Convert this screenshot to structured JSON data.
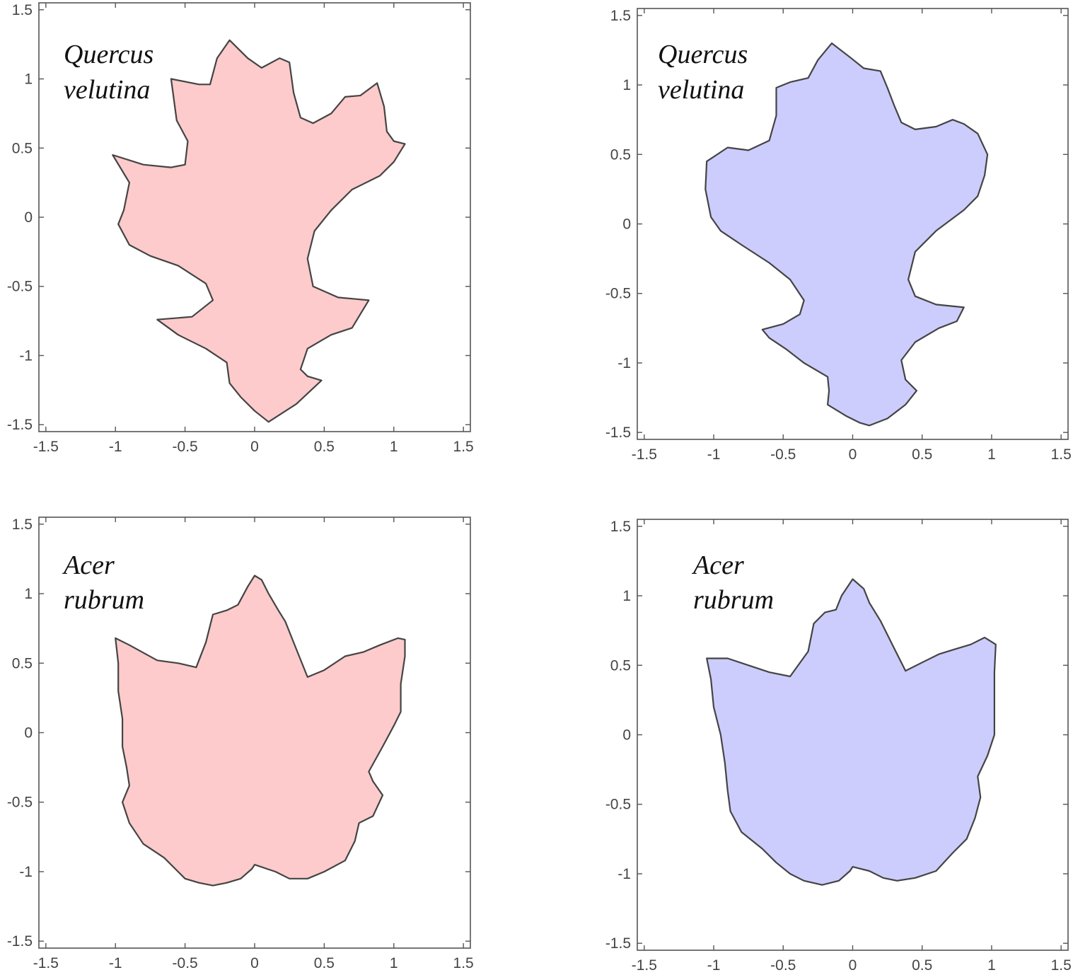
{
  "figure": {
    "background": "#ffffff",
    "axis_color": "#555555",
    "outline_color": "#444444"
  },
  "chart_data": [
    {
      "type": "area",
      "name": "panel-top-left",
      "label_lines": [
        "Quercus",
        "velutina"
      ],
      "fill": "#fdcbcb",
      "xlim": [
        -1.55,
        1.55
      ],
      "ylim": [
        -1.55,
        1.55
      ],
      "xticks": [
        -1.5,
        -1,
        -0.5,
        0,
        0.5,
        1,
        1.5
      ],
      "yticks": [
        -1.5,
        -1,
        -0.5,
        0,
        0.5,
        1,
        1.5
      ],
      "xtick_labels": [
        "-1.5",
        "-1",
        "-0.5",
        "0",
        "0.5",
        "1",
        "1.5"
      ],
      "ytick_labels": [
        "-1.5",
        "-1",
        "-0.5",
        "0",
        "0.5",
        "1",
        "1.5"
      ],
      "grid": false,
      "outline": [
        [
          0.1,
          -1.48
        ],
        [
          0.3,
          -1.35
        ],
        [
          0.48,
          -1.18
        ],
        [
          0.38,
          -1.15
        ],
        [
          0.33,
          -1.1
        ],
        [
          0.38,
          -0.95
        ],
        [
          0.55,
          -0.85
        ],
        [
          0.7,
          -0.8
        ],
        [
          0.82,
          -0.6
        ],
        [
          0.6,
          -0.58
        ],
        [
          0.42,
          -0.5
        ],
        [
          0.38,
          -0.3
        ],
        [
          0.43,
          -0.1
        ],
        [
          0.55,
          0.05
        ],
        [
          0.7,
          0.2
        ],
        [
          0.9,
          0.3
        ],
        [
          1,
          0.4
        ],
        [
          1.08,
          0.53
        ],
        [
          1.0,
          0.55
        ],
        [
          0.95,
          0.62
        ],
        [
          0.93,
          0.8
        ],
        [
          0.88,
          0.97
        ],
        [
          0.76,
          0.88
        ],
        [
          0.65,
          0.87
        ],
        [
          0.55,
          0.75
        ],
        [
          0.42,
          0.68
        ],
        [
          0.33,
          0.72
        ],
        [
          0.28,
          0.9
        ],
        [
          0.25,
          1.12
        ],
        [
          0.18,
          1.15
        ],
        [
          0.05,
          1.08
        ],
        [
          -0.05,
          1.15
        ],
        [
          -0.18,
          1.28
        ],
        [
          -0.27,
          1.15
        ],
        [
          -0.32,
          0.96
        ],
        [
          -0.4,
          0.96
        ],
        [
          -0.6,
          1.0
        ],
        [
          -0.56,
          0.7
        ],
        [
          -0.48,
          0.55
        ],
        [
          -0.5,
          0.38
        ],
        [
          -0.6,
          0.36
        ],
        [
          -0.8,
          0.38
        ],
        [
          -1.02,
          0.45
        ],
        [
          -0.9,
          0.25
        ],
        [
          -0.94,
          0.05
        ],
        [
          -0.98,
          -0.05
        ],
        [
          -0.9,
          -0.2
        ],
        [
          -0.75,
          -0.28
        ],
        [
          -0.55,
          -0.35
        ],
        [
          -0.35,
          -0.48
        ],
        [
          -0.3,
          -0.6
        ],
        [
          -0.45,
          -0.72
        ],
        [
          -0.7,
          -0.74
        ],
        [
          -0.55,
          -0.85
        ],
        [
          -0.35,
          -0.95
        ],
        [
          -0.2,
          -1.05
        ],
        [
          -0.18,
          -1.2
        ],
        [
          -0.1,
          -1.3
        ],
        [
          0.0,
          -1.4
        ]
      ]
    },
    {
      "type": "area",
      "name": "panel-top-right",
      "label_lines": [
        "Quercus",
        "velutina"
      ],
      "fill": "#cccdfc",
      "xlim": [
        -1.55,
        1.55
      ],
      "ylim": [
        -1.55,
        1.55
      ],
      "xticks": [
        -1.5,
        -1,
        -0.5,
        0,
        0.5,
        1,
        1.5
      ],
      "yticks": [
        -1.5,
        -1,
        -0.5,
        0,
        0.5,
        1,
        1.5
      ],
      "xtick_labels": [
        "-1.5",
        "-1",
        "-0.5",
        "0",
        "0.5",
        "1",
        "1.5"
      ],
      "ytick_labels": [
        "-1.5",
        "-1",
        "-0.5",
        "0",
        "0.5",
        "1",
        "1.5"
      ],
      "grid": false,
      "outline": [
        [
          0.12,
          -1.45
        ],
        [
          0.25,
          -1.4
        ],
        [
          0.38,
          -1.3
        ],
        [
          0.46,
          -1.2
        ],
        [
          0.38,
          -1.12
        ],
        [
          0.35,
          -0.98
        ],
        [
          0.45,
          -0.85
        ],
        [
          0.62,
          -0.75
        ],
        [
          0.75,
          -0.7
        ],
        [
          0.8,
          -0.6
        ],
        [
          0.6,
          -0.58
        ],
        [
          0.45,
          -0.52
        ],
        [
          0.4,
          -0.4
        ],
        [
          0.45,
          -0.2
        ],
        [
          0.6,
          -0.05
        ],
        [
          0.8,
          0.1
        ],
        [
          0.9,
          0.2
        ],
        [
          0.95,
          0.35
        ],
        [
          0.97,
          0.5
        ],
        [
          0.9,
          0.65
        ],
        [
          0.8,
          0.72
        ],
        [
          0.72,
          0.75
        ],
        [
          0.6,
          0.7
        ],
        [
          0.45,
          0.68
        ],
        [
          0.35,
          0.73
        ],
        [
          0.3,
          0.85
        ],
        [
          0.25,
          0.98
        ],
        [
          0.2,
          1.1
        ],
        [
          0.08,
          1.12
        ],
        [
          -0.02,
          1.2
        ],
        [
          -0.15,
          1.3
        ],
        [
          -0.25,
          1.18
        ],
        [
          -0.32,
          1.05
        ],
        [
          -0.45,
          1.02
        ],
        [
          -0.55,
          0.98
        ],
        [
          -0.55,
          0.78
        ],
        [
          -0.6,
          0.6
        ],
        [
          -0.75,
          0.53
        ],
        [
          -0.9,
          0.55
        ],
        [
          -1.05,
          0.45
        ],
        [
          -1.06,
          0.25
        ],
        [
          -1.02,
          0.05
        ],
        [
          -0.95,
          -0.05
        ],
        [
          -0.8,
          -0.15
        ],
        [
          -0.6,
          -0.28
        ],
        [
          -0.45,
          -0.4
        ],
        [
          -0.35,
          -0.55
        ],
        [
          -0.38,
          -0.65
        ],
        [
          -0.5,
          -0.72
        ],
        [
          -0.65,
          -0.76
        ],
        [
          -0.6,
          -0.82
        ],
        [
          -0.48,
          -0.9
        ],
        [
          -0.35,
          -1.0
        ],
        [
          -0.18,
          -1.1
        ],
        [
          -0.17,
          -1.2
        ],
        [
          -0.18,
          -1.3
        ],
        [
          -0.05,
          -1.38
        ],
        [
          0.05,
          -1.43
        ]
      ]
    },
    {
      "type": "area",
      "name": "panel-bottom-left",
      "label_lines": [
        "Acer",
        "rubrum"
      ],
      "fill": "#fdcbcb",
      "xlim": [
        -1.55,
        1.55
      ],
      "ylim": [
        -1.55,
        1.55
      ],
      "xticks": [
        -1.5,
        -1,
        -0.5,
        0,
        0.5,
        1,
        1.5
      ],
      "yticks": [
        -1.5,
        -1,
        -0.5,
        0,
        0.5,
        1,
        1.5
      ],
      "xtick_labels": [
        "-1.5",
        "-1",
        "-0.5",
        "0",
        "0.5",
        "1",
        "1.5"
      ],
      "ytick_labels": [
        "-1.5",
        "-1",
        "-0.5",
        "0",
        "0.5",
        "1",
        "1.5"
      ],
      "grid": false,
      "outline": [
        [
          0.0,
          -0.95
        ],
        [
          0.15,
          -1.0
        ],
        [
          0.25,
          -1.05
        ],
        [
          0.38,
          -1.05
        ],
        [
          0.5,
          -1.0
        ],
        [
          0.65,
          -0.92
        ],
        [
          0.72,
          -0.78
        ],
        [
          0.75,
          -0.65
        ],
        [
          0.85,
          -0.6
        ],
        [
          0.92,
          -0.45
        ],
        [
          0.85,
          -0.35
        ],
        [
          0.82,
          -0.28
        ],
        [
          0.92,
          -0.1
        ],
        [
          1.0,
          0.05
        ],
        [
          1.05,
          0.15
        ],
        [
          1.05,
          0.35
        ],
        [
          1.08,
          0.55
        ],
        [
          1.08,
          0.67
        ],
        [
          1.03,
          0.68
        ],
        [
          0.9,
          0.63
        ],
        [
          0.78,
          0.58
        ],
        [
          0.65,
          0.55
        ],
        [
          0.5,
          0.45
        ],
        [
          0.38,
          0.4
        ],
        [
          0.3,
          0.6
        ],
        [
          0.22,
          0.8
        ],
        [
          0.17,
          0.88
        ],
        [
          0.1,
          1.0
        ],
        [
          0.05,
          1.1
        ],
        [
          0.0,
          1.13
        ],
        [
          -0.05,
          1.05
        ],
        [
          -0.12,
          0.92
        ],
        [
          -0.2,
          0.88
        ],
        [
          -0.3,
          0.85
        ],
        [
          -0.35,
          0.65
        ],
        [
          -0.42,
          0.47
        ],
        [
          -0.55,
          0.5
        ],
        [
          -0.7,
          0.52
        ],
        [
          -0.9,
          0.63
        ],
        [
          -1.0,
          0.68
        ],
        [
          -0.98,
          0.5
        ],
        [
          -0.98,
          0.3
        ],
        [
          -0.95,
          0.1
        ],
        [
          -0.95,
          -0.1
        ],
        [
          -0.92,
          -0.25
        ],
        [
          -0.9,
          -0.38
        ],
        [
          -0.95,
          -0.5
        ],
        [
          -0.9,
          -0.65
        ],
        [
          -0.8,
          -0.8
        ],
        [
          -0.65,
          -0.9
        ],
        [
          -0.55,
          -1.0
        ],
        [
          -0.5,
          -1.05
        ],
        [
          -0.4,
          -1.08
        ],
        [
          -0.3,
          -1.1
        ],
        [
          -0.2,
          -1.08
        ],
        [
          -0.1,
          -1.05
        ],
        [
          -0.02,
          -0.98
        ]
      ]
    },
    {
      "type": "area",
      "name": "panel-bottom-right",
      "label_lines": [
        "Acer",
        "rubrum"
      ],
      "fill": "#cccdfc",
      "xlim": [
        -1.55,
        1.55
      ],
      "ylim": [
        -1.55,
        1.55
      ],
      "xticks": [
        -1.5,
        -1,
        -0.5,
        0,
        0.5,
        1,
        1.5
      ],
      "yticks": [
        -1.5,
        -1,
        -0.5,
        0,
        0.5,
        1,
        1.5
      ],
      "xtick_labels": [
        "-1.5",
        "-1",
        "-0.5",
        "0",
        "0.5",
        "1",
        "1.5"
      ],
      "ytick_labels": [
        "-1.5",
        "-1",
        "-0.5",
        "0",
        "0.5",
        "1",
        "1.5"
      ],
      "grid": false,
      "outline": [
        [
          0.0,
          -0.95
        ],
        [
          0.12,
          -0.98
        ],
        [
          0.22,
          -1.03
        ],
        [
          0.32,
          -1.05
        ],
        [
          0.45,
          -1.03
        ],
        [
          0.6,
          -0.98
        ],
        [
          0.72,
          -0.85
        ],
        [
          0.82,
          -0.75
        ],
        [
          0.88,
          -0.6
        ],
        [
          0.92,
          -0.45
        ],
        [
          0.9,
          -0.3
        ],
        [
          0.97,
          -0.15
        ],
        [
          1.02,
          0.0
        ],
        [
          1.02,
          0.2
        ],
        [
          1.02,
          0.45
        ],
        [
          1.03,
          0.65
        ],
        [
          0.95,
          0.7
        ],
        [
          0.85,
          0.65
        ],
        [
          0.75,
          0.62
        ],
        [
          0.62,
          0.58
        ],
        [
          0.5,
          0.52
        ],
        [
          0.38,
          0.46
        ],
        [
          0.3,
          0.62
        ],
        [
          0.2,
          0.82
        ],
        [
          0.12,
          0.95
        ],
        [
          0.08,
          1.05
        ],
        [
          0.0,
          1.12
        ],
        [
          -0.08,
          1.0
        ],
        [
          -0.12,
          0.9
        ],
        [
          -0.2,
          0.88
        ],
        [
          -0.28,
          0.8
        ],
        [
          -0.32,
          0.6
        ],
        [
          -0.45,
          0.42
        ],
        [
          -0.6,
          0.45
        ],
        [
          -0.75,
          0.5
        ],
        [
          -0.9,
          0.55
        ],
        [
          -1.05,
          0.55
        ],
        [
          -1.02,
          0.4
        ],
        [
          -1.0,
          0.2
        ],
        [
          -0.95,
          0.0
        ],
        [
          -0.92,
          -0.2
        ],
        [
          -0.9,
          -0.4
        ],
        [
          -0.88,
          -0.55
        ],
        [
          -0.8,
          -0.7
        ],
        [
          -0.65,
          -0.82
        ],
        [
          -0.55,
          -0.92
        ],
        [
          -0.45,
          -1.0
        ],
        [
          -0.35,
          -1.05
        ],
        [
          -0.22,
          -1.08
        ],
        [
          -0.1,
          -1.05
        ],
        [
          -0.02,
          -0.98
        ]
      ]
    }
  ]
}
